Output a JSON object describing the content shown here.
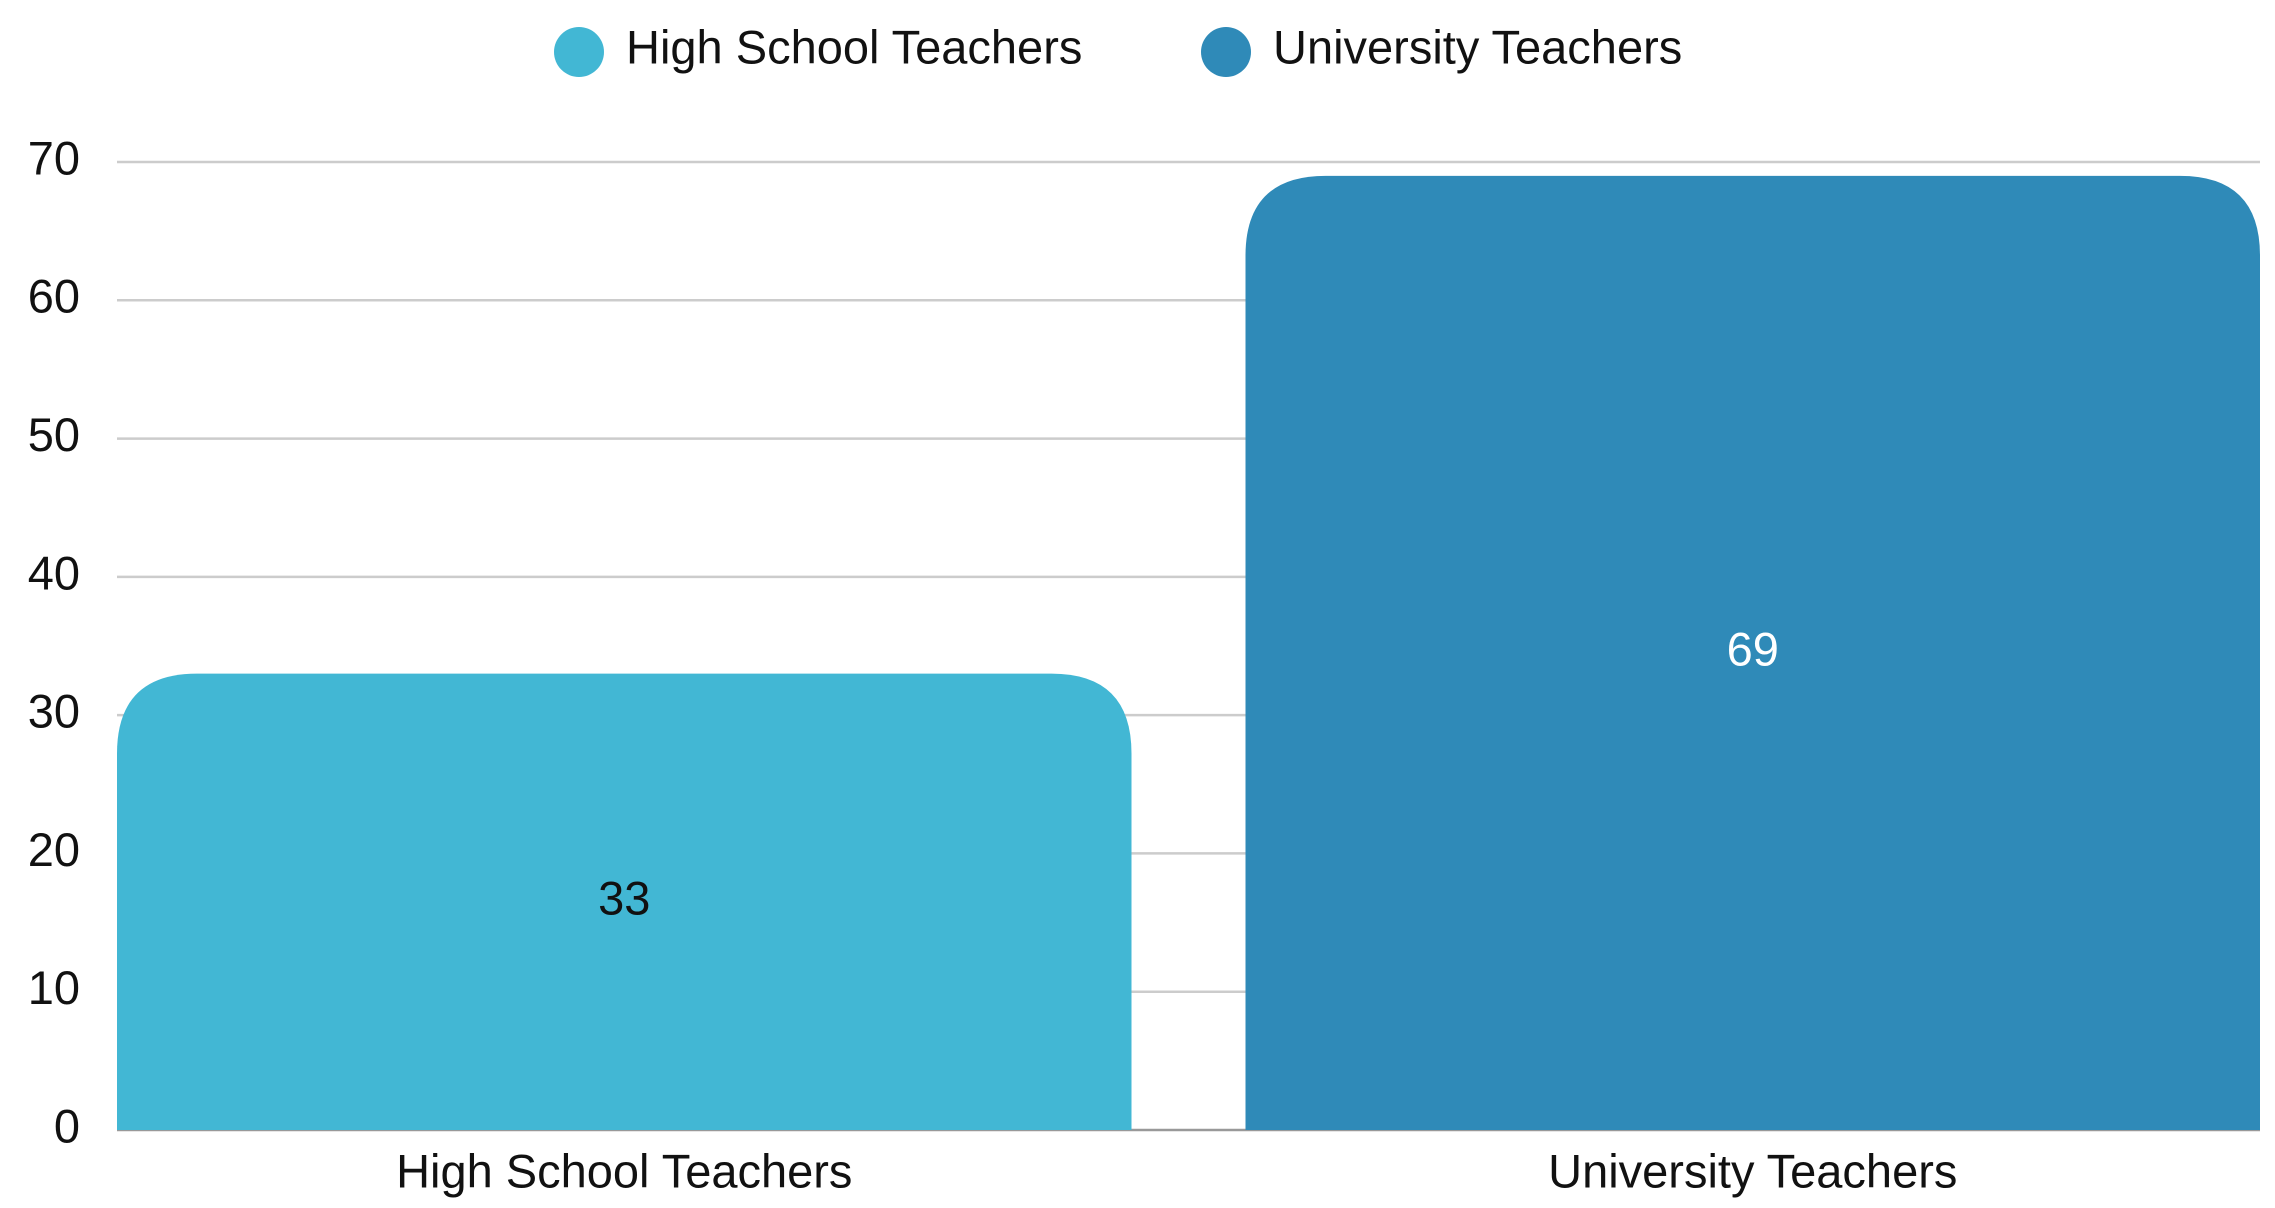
{
  "chart_data": {
    "type": "bar",
    "categories": [
      "High School Teachers",
      "University Teachers"
    ],
    "values": [
      33,
      69
    ],
    "colors": [
      "#42b7d4",
      "#2f8ab8"
    ],
    "label_colors": [
      "#111111",
      "#ffffff"
    ],
    "ylim": [
      0,
      70
    ],
    "yticks": [
      0,
      10,
      20,
      30,
      40,
      50,
      60,
      70
    ],
    "grid": true,
    "legend": "top"
  }
}
